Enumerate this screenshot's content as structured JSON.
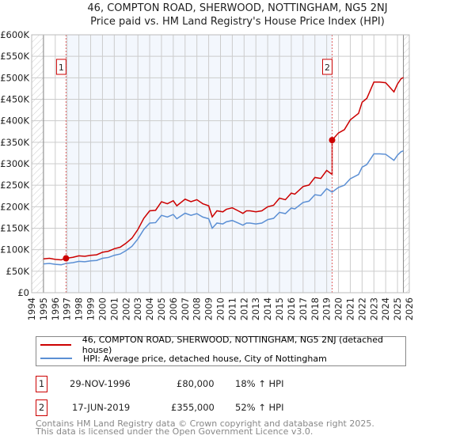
{
  "title": "46, COMPTON ROAD, SHERWOOD, NOTTINGHAM, NG5 2NJ",
  "subtitle": "Price paid vs. HM Land Registry's House Price Index (HPI)",
  "chart_data": {
    "type": "line",
    "ylim": [
      0,
      600000
    ],
    "xlim": [
      1994,
      2026
    ],
    "yticks": [
      "£0",
      "£50K",
      "£100K",
      "£150K",
      "£200K",
      "£250K",
      "£300K",
      "£350K",
      "£400K",
      "£450K",
      "£500K",
      "£550K",
      "£600K"
    ],
    "xticks": [
      "1994",
      "1995",
      "1996",
      "1997",
      "1998",
      "1999",
      "2000",
      "2001",
      "2002",
      "2003",
      "2004",
      "2005",
      "2006",
      "2007",
      "2008",
      "2009",
      "2010",
      "2011",
      "2012",
      "2013",
      "2014",
      "2015",
      "2016",
      "2017",
      "2018",
      "2019",
      "2020",
      "2021",
      "2022",
      "2023",
      "2024",
      "2025",
      "2026"
    ],
    "series": [
      {
        "name": "46, COMPTON ROAD, SHERWOOD, NOTTINGHAM, NG5 2NJ (detached house)",
        "color": "#cc0000",
        "derived_from_hpi_and_sales": true
      },
      {
        "name": "HPI: Average price, detached house, City of Nottingham",
        "color": "#5b8fd4",
        "x": [
          1995,
          1995.5,
          1996,
          1996.5,
          1996.9,
          1997.5,
          1998,
          1998.5,
          1999,
          1999.5,
          2000,
          2000.5,
          2001,
          2001.5,
          2002,
          2002.5,
          2003,
          2003.5,
          2004,
          2004.5,
          2005,
          2005.5,
          2006,
          2006.3,
          2007,
          2007.5,
          2008,
          2008.5,
          2009,
          2009.3,
          2009.7,
          2010.2,
          2010.5,
          2011,
          2011.5,
          2011.9,
          2012.2,
          2012.5,
          2013,
          2013.5,
          2014,
          2014.5,
          2015,
          2015.5,
          2016,
          2016.3,
          2017,
          2017.5,
          2018,
          2018.5,
          2019,
          2019.46,
          2020,
          2020.5,
          2021,
          2021.7,
          2022,
          2022.4,
          2023,
          2023.5,
          2024,
          2024.3,
          2024.7,
          2025,
          2025.3,
          2025.5
        ],
        "y": [
          67000,
          68000,
          66000,
          65000,
          68000,
          70000,
          73000,
          72000,
          74000,
          75000,
          80000,
          82000,
          87000,
          90000,
          98000,
          108000,
          125000,
          147000,
          162000,
          163000,
          180000,
          176000,
          182000,
          172000,
          185000,
          180000,
          184000,
          176000,
          172000,
          150000,
          162000,
          160000,
          165000,
          168000,
          162000,
          157000,
          162000,
          162000,
          160000,
          162000,
          170000,
          173000,
          187000,
          184000,
          197000,
          195000,
          210000,
          213000,
          228000,
          226000,
          242000,
          234000,
          245000,
          250000,
          265000,
          275000,
          292000,
          298000,
          323000,
          323000,
          322000,
          316000,
          308000,
          320000,
          328000,
          330000
        ]
      }
    ],
    "sales": [
      {
        "id": "1",
        "x": 1996.91,
        "price": 80000,
        "date": "29-NOV-1996",
        "price_label": "£80,000",
        "delta": "18% ↑ HPI"
      },
      {
        "id": "2",
        "x": 2019.46,
        "price": 355000,
        "date": "17-JUN-2019",
        "price_label": "£355,000",
        "delta": "52% ↑ HPI"
      }
    ]
  },
  "footer": [
    "Contains HM Land Registry data © Crown copyright and database right 2025.",
    "This data is licensed under the Open Government Licence v3.0."
  ]
}
